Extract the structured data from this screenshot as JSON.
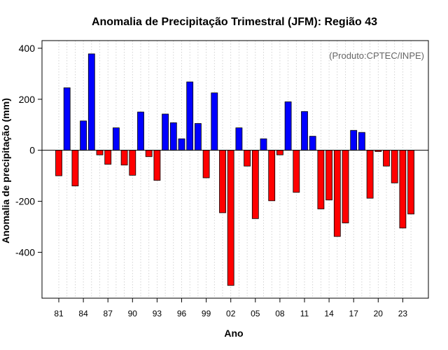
{
  "chart_data": {
    "type": "bar",
    "title": "Anomalia de Precipitação Trimestral (JFM): Região 43",
    "xlabel": "Ano",
    "ylabel": "Anomalia de precipitação (mm)",
    "annotation": "(Produto:CPTEC/INPE)",
    "ylim": [
      -580,
      430
    ],
    "yticks": [
      -400,
      -200,
      0,
      200,
      400
    ],
    "yticks_labels": [
      "-400",
      "-200",
      "0",
      "200",
      "400"
    ],
    "xtick_years": [
      1981,
      1984,
      1987,
      1990,
      1993,
      1996,
      1999,
      2002,
      2005,
      2008,
      2011,
      2014,
      2017,
      2020,
      2023
    ],
    "xtick_labels": [
      "81",
      "84",
      "87",
      "90",
      "93",
      "96",
      "99",
      "02",
      "05",
      "08",
      "11",
      "14",
      "17",
      "20",
      "23"
    ],
    "grid": true,
    "colors": {
      "positive": "#0000ff",
      "negative": "#ff0000",
      "frame": "#000000",
      "grid": "#c8c8c8"
    },
    "years": [
      1981,
      1982,
      1983,
      1984,
      1985,
      1986,
      1987,
      1988,
      1989,
      1990,
      1991,
      1992,
      1993,
      1994,
      1995,
      1996,
      1997,
      1998,
      1999,
      2000,
      2001,
      2002,
      2003,
      2004,
      2005,
      2006,
      2007,
      2008,
      2009,
      2010,
      2011,
      2012,
      2013,
      2014,
      2015,
      2016,
      2017,
      2018,
      2019,
      2020,
      2021,
      2022,
      2023,
      2024
    ],
    "values": [
      -100,
      245,
      -140,
      115,
      378,
      -18,
      -55,
      88,
      -58,
      -98,
      150,
      -25,
      -118,
      142,
      108,
      45,
      268,
      105,
      -108,
      225,
      -245,
      -530,
      88,
      -62,
      -268,
      45,
      -198,
      -18,
      190,
      -165,
      152,
      55,
      -230,
      -195,
      -338,
      -285,
      78,
      70,
      -188,
      -5,
      -62,
      -128,
      -305,
      -250
    ]
  }
}
